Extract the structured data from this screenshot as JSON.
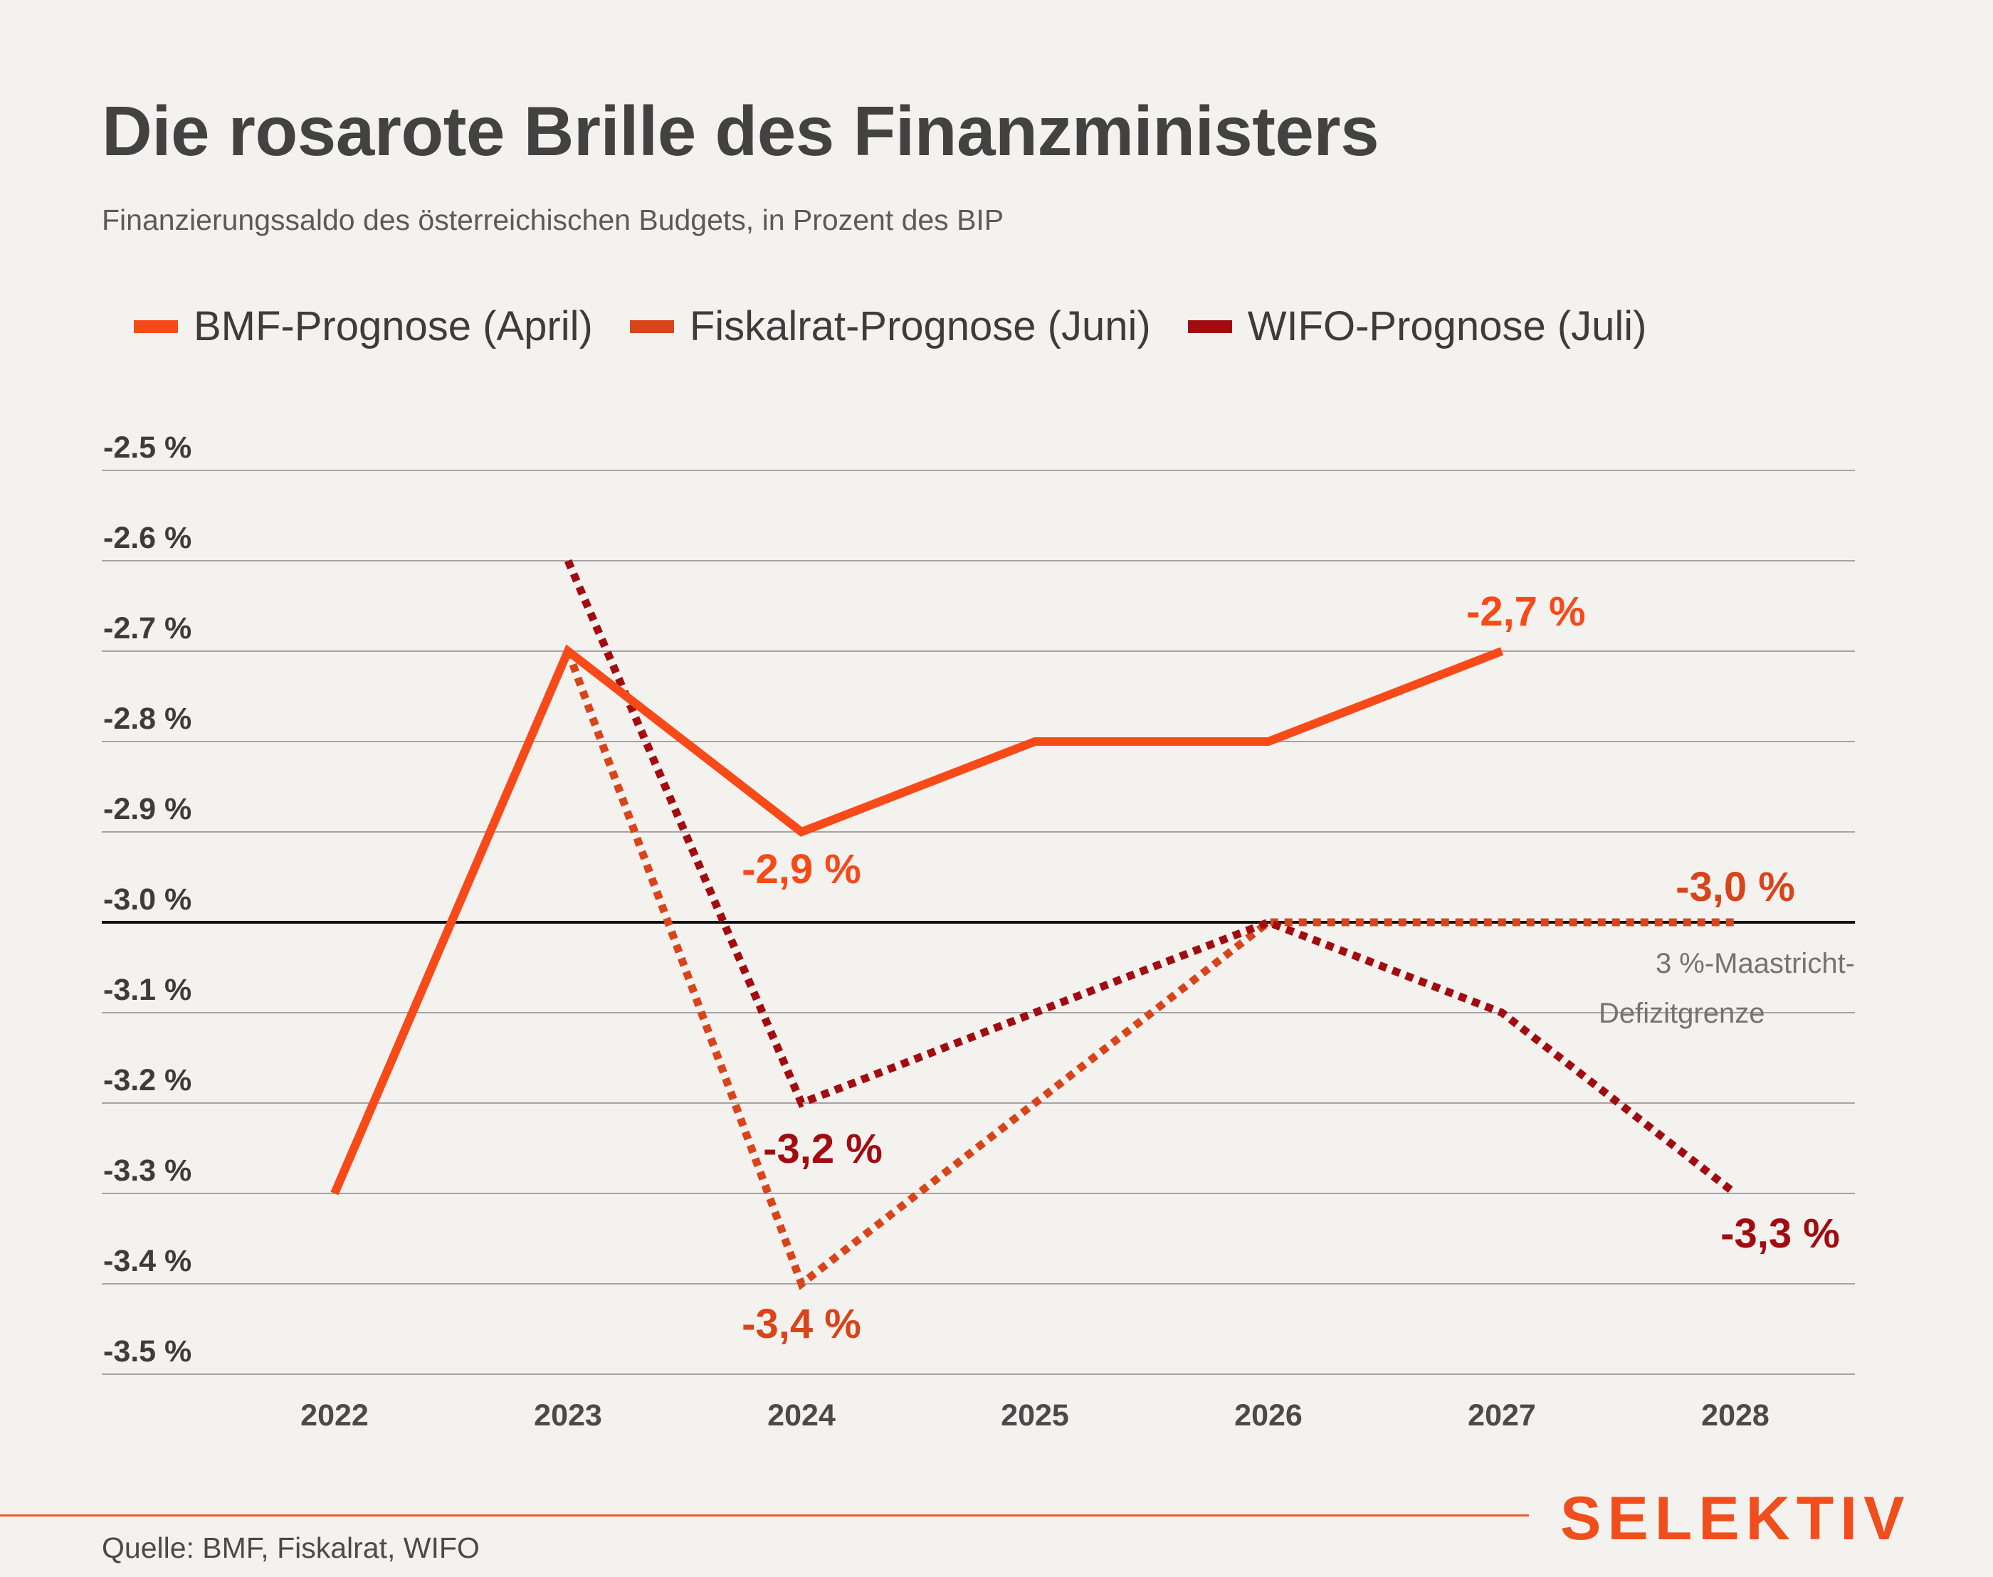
{
  "header": {
    "title": "Die rosarote Brille des Finanzministers",
    "subtitle": "Finanzierungssaldo des österreichischen Budgets, in Prozent des BIP"
  },
  "legend": {
    "items": [
      {
        "label": "BMF-Prognose (April)",
        "color": "#f84a18"
      },
      {
        "label": "Fiskalrat-Prognose (Juni)",
        "color": "#d9441a"
      },
      {
        "label": "WIFO-Prognose (Juli)",
        "color": "#a20c10"
      }
    ]
  },
  "chart_data": {
    "type": "line",
    "title": "Die rosarote Brille des Finanzministers",
    "subtitle": "Finanzierungssaldo des österreichischen Budgets, in Prozent des BIP",
    "x": [
      2022,
      2023,
      2024,
      2025,
      2026,
      2027,
      2028
    ],
    "x_tick_labels": [
      "2022",
      "2023",
      "2024",
      "2025",
      "2026",
      "2027",
      "2028"
    ],
    "y_tick_labels": [
      "-2.5 %",
      "-2.6 %",
      "-2.7 %",
      "-2.8 %",
      "-2.9 %",
      "-3.0 %",
      "-3.1 %",
      "-3.2 %",
      "-3.3 %",
      "-3.4 %",
      "-3.5 %"
    ],
    "y_ticks": [
      -2.5,
      -2.6,
      -2.7,
      -2.8,
      -2.9,
      -3.0,
      -3.1,
      -3.2,
      -3.3,
      -3.4,
      -3.5
    ],
    "ylim": [
      -3.5,
      -2.5
    ],
    "grid": true,
    "legend_position": "top",
    "series": [
      {
        "name": "BMF-Prognose (April)",
        "style": "solid",
        "color": "#f84a18",
        "x": [
          2022,
          2023,
          2024,
          2025,
          2026,
          2027
        ],
        "values": [
          -3.3,
          -2.7,
          -2.9,
          -2.8,
          -2.8,
          -2.7
        ]
      },
      {
        "name": "Fiskalrat-Prognose (Juni)",
        "style": "dotted",
        "color": "#d9441a",
        "x": [
          2023,
          2024,
          2025,
          2026,
          2027,
          2028
        ],
        "values": [
          -2.7,
          -3.4,
          -3.2,
          -3.0,
          -3.0,
          -3.0
        ]
      },
      {
        "name": "WIFO-Prognose (Juli)",
        "style": "dotted",
        "color": "#a20c10",
        "x": [
          2023,
          2024,
          2025,
          2026,
          2027,
          2028
        ],
        "values": [
          -2.6,
          -3.2,
          -3.1,
          -3.0,
          -3.1,
          -3.3
        ]
      }
    ],
    "reference_line": {
      "y": -3.0,
      "label_line1": "3 %-Maastricht-",
      "label_line2": "Defizitgrenze"
    },
    "data_labels": [
      {
        "text": "-2,7 %",
        "x": 2027,
        "y": -2.7,
        "color": "#f84a18"
      },
      {
        "text": "-2,9 %",
        "x": 2024,
        "y": -2.9,
        "color": "#f84a18"
      },
      {
        "text": "-3,0 %",
        "x": 2028,
        "y": -3.0,
        "color": "#d9441a"
      },
      {
        "text": "-3,2 %",
        "x": 2024,
        "y": -3.2,
        "color": "#a20c10"
      },
      {
        "text": "-3,3 %",
        "x": 2028,
        "y": -3.3,
        "color": "#a20c10"
      },
      {
        "text": "-3,4 %",
        "x": 2024,
        "y": -3.4,
        "color": "#d9441a"
      }
    ]
  },
  "footer": {
    "source": "Quelle: BMF, Fiskalrat, WIFO",
    "brand": "SELEKTIV",
    "brand_color": "#f04e1c"
  }
}
